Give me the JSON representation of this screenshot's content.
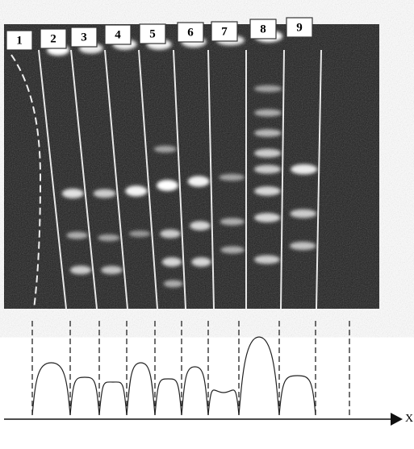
{
  "lanes": {
    "labels": [
      "1",
      "2",
      "3",
      "4",
      "5",
      "6",
      "7",
      "8",
      "9"
    ]
  },
  "profile": {
    "axis_label": "X"
  }
}
